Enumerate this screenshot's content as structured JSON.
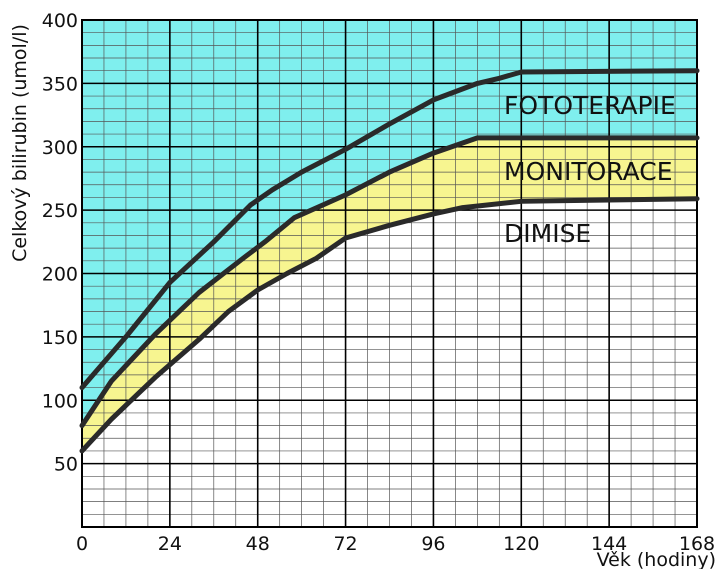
{
  "chart_data": {
    "type": "area",
    "title": "",
    "xlabel": "Věk (hodiny)",
    "ylabel": "Celkový bilirubin (umol/l)",
    "xlim": [
      0,
      168
    ],
    "ylim": [
      0,
      400
    ],
    "x_ticks": [
      0,
      24,
      48,
      72,
      96,
      120,
      144,
      168
    ],
    "y_ticks": [
      50,
      100,
      150,
      200,
      250,
      300,
      350,
      400
    ],
    "grid": true,
    "minor_grid": {
      "x_step": 6,
      "y_step": 10
    },
    "series": [
      {
        "name": "FOTOTERAPIE",
        "x": [
          0,
          12,
          24,
          36,
          46,
          52,
          60,
          72,
          84,
          96,
          108,
          114,
          120,
          168
        ],
        "values": [
          110,
          150,
          193,
          225,
          254,
          266,
          280,
          298,
          318,
          337,
          350,
          354,
          359,
          360
        ]
      },
      {
        "name": "MONITORACE",
        "x": [
          0,
          8,
          20,
          32,
          44,
          50,
          58,
          72,
          84,
          96,
          108,
          120,
          168
        ],
        "values": [
          80,
          115,
          152,
          185,
          212,
          225,
          244,
          262,
          280,
          295,
          307,
          307,
          307
        ]
      },
      {
        "name": "DIMISE",
        "x": [
          0,
          8,
          20,
          32,
          40,
          48,
          56,
          64,
          72,
          84,
          96,
          104,
          120,
          168
        ],
        "values": [
          60,
          85,
          118,
          148,
          170,
          187,
          200,
          212,
          228,
          238,
          247,
          252,
          257,
          259
        ]
      }
    ],
    "zone_labels": [
      "FOTOTERAPIE",
      "MONITORACE",
      "DIMISE"
    ],
    "colors": {
      "fototerapie_zone": "#7fefee",
      "monitorace_zone": "#f7f590",
      "dimise_zone": "#ffffff",
      "curve": "#2a2a2a",
      "grid_major": "#000000",
      "grid_minor": "#555555"
    }
  }
}
